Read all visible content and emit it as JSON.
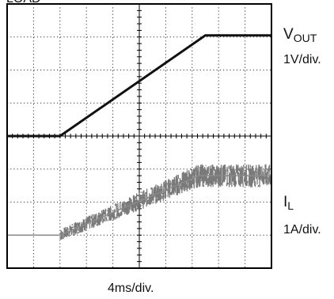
{
  "cropped_label": "LOAD",
  "chart_data": {
    "type": "line",
    "grid": true,
    "x_divisions": 10,
    "y_divisions": 8,
    "x_scale": {
      "label": "4ms/div.",
      "unit": "ms",
      "per_div": 4,
      "xlim": [
        0,
        40
      ]
    },
    "series": [
      {
        "name": "VOUT",
        "label_symbol": "V",
        "label_subscript": "OUT",
        "scale_label": "1V/div.",
        "volts_per_div": 1,
        "x_ms": [
          0,
          8,
          30,
          40
        ],
        "y_div": [
          4.0,
          4.0,
          7.05,
          7.05
        ],
        "color": "#111111"
      },
      {
        "name": "IL",
        "label_symbol": "I",
        "label_subscript": "L",
        "scale_label": "1A/div.",
        "amps_per_div": 1,
        "x_ms": [
          0,
          8,
          29,
          40
        ],
        "y_div": [
          1.0,
          1.0,
          2.8,
          2.8
        ],
        "ripple_div": [
          0,
          0.35,
          0.7,
          0.7
        ],
        "color": "#7a7a7a"
      }
    ]
  }
}
